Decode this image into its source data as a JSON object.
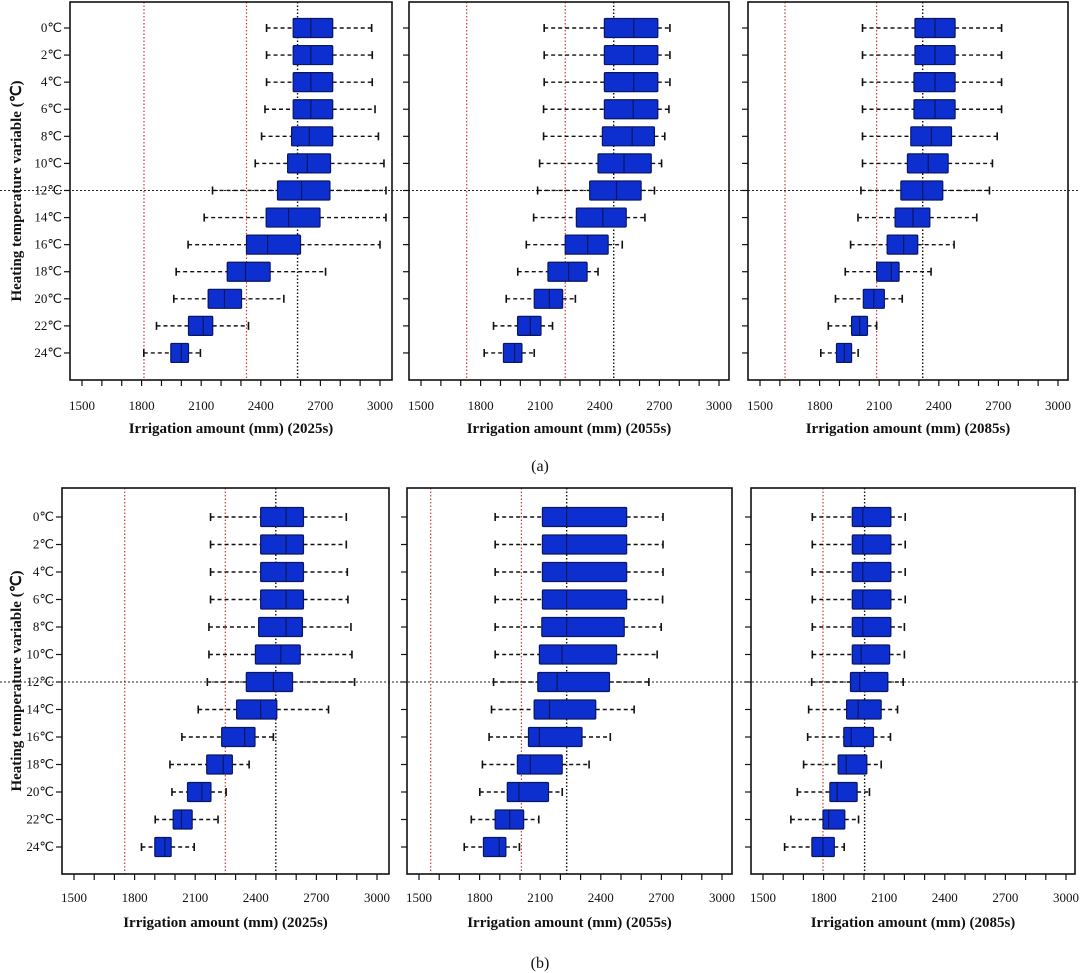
{
  "figure": {
    "row_labels": [
      "(a)",
      "(b)"
    ]
  },
  "colors": {
    "box_fill": "#0d2fcf",
    "box_stroke": "#0a1660",
    "ref_red": "#d03a3a",
    "ref_black": "#111111"
  },
  "chart_data": [
    {
      "type": "boxplot",
      "row": "(a)",
      "period": "2025s",
      "xlabel": "Irrigation amount (mm) (2025s)",
      "ylabel": "Heating temperature variable (℃)",
      "xlim": [
        1500,
        3000
      ],
      "x_ticks": [
        "1500",
        "1800",
        "2100",
        "2400",
        "2700",
        "3000"
      ],
      "categories": [
        "0℃",
        "2℃",
        "4℃",
        "6℃",
        "8℃",
        "10℃",
        "12℃",
        "14℃",
        "16℃",
        "18℃",
        "20℃",
        "22℃",
        "24℃"
      ],
      "stats_order": [
        "whisker_low",
        "q1",
        "median",
        "q3",
        "whisker_high"
      ],
      "boxes": [
        [
          2429,
          2563,
          2652,
          2762,
          2958
        ],
        [
          2429,
          2563,
          2652,
          2762,
          2961
        ],
        [
          2429,
          2563,
          2652,
          2762,
          2961
        ],
        [
          2421,
          2563,
          2652,
          2762,
          2975
        ],
        [
          2404,
          2555,
          2644,
          2762,
          2992
        ],
        [
          2372,
          2535,
          2634,
          2751,
          3020
        ],
        [
          2157,
          2484,
          2605,
          2748,
          3030
        ],
        [
          2115,
          2427,
          2540,
          2698,
          3030
        ],
        [
          2034,
          2328,
          2434,
          2600,
          3000
        ],
        [
          1974,
          2231,
          2323,
          2447,
          2726
        ],
        [
          1962,
          2135,
          2217,
          2303,
          2516
        ],
        [
          1875,
          2036,
          2110,
          2158,
          2338
        ],
        [
          1811,
          1947,
          2000,
          2036,
          2096
        ]
      ],
      "red_reference_lines": [
        1812,
        2328
      ],
      "black_reference_line": 2585,
      "highlight_category": "12℃"
    },
    {
      "type": "boxplot",
      "row": "(a)",
      "period": "2055s",
      "xlabel": "Irrigation amount (mm) (2055s)",
      "ylabel": "",
      "xlim": [
        1500,
        3000
      ],
      "x_ticks": [
        "1500",
        "1800",
        "2100",
        "2400",
        "2700",
        "3000"
      ],
      "categories": [
        "0℃",
        "2℃",
        "4℃",
        "6℃",
        "8℃",
        "10℃",
        "12℃",
        "14℃",
        "16℃",
        "18℃",
        "20℃",
        "22℃",
        "24℃"
      ],
      "stats_order": [
        "whisker_low",
        "q1",
        "median",
        "q3",
        "whisker_high"
      ],
      "boxes": [
        [
          2120,
          2423,
          2571,
          2692,
          2753
        ],
        [
          2120,
          2423,
          2571,
          2692,
          2753
        ],
        [
          2120,
          2423,
          2571,
          2692,
          2753
        ],
        [
          2117,
          2423,
          2568,
          2692,
          2748
        ],
        [
          2117,
          2413,
          2563,
          2675,
          2727
        ],
        [
          2097,
          2391,
          2522,
          2659,
          2711
        ],
        [
          2087,
          2349,
          2484,
          2608,
          2675
        ],
        [
          2067,
          2282,
          2415,
          2533,
          2627
        ],
        [
          2030,
          2226,
          2339,
          2442,
          2513
        ],
        [
          1987,
          2139,
          2243,
          2336,
          2391
        ],
        [
          1929,
          2070,
          2146,
          2213,
          2277
        ],
        [
          1865,
          1986,
          2050,
          2104,
          2162
        ],
        [
          1818,
          1915,
          1971,
          2008,
          2070
        ]
      ],
      "red_reference_lines": [
        1730,
        2226
      ],
      "black_reference_line": 2470,
      "highlight_category": "12℃"
    },
    {
      "type": "boxplot",
      "row": "(a)",
      "period": "2085s",
      "xlabel": "Irrigation amount (mm) (2085s)",
      "ylabel": "",
      "xlim": [
        1500,
        3000
      ],
      "x_ticks": [
        "1500",
        "1800",
        "2100",
        "2400",
        "2700",
        "3000"
      ],
      "categories": [
        "0℃",
        "2℃",
        "4℃",
        "6℃",
        "8℃",
        "10℃",
        "12℃",
        "14℃",
        "16℃",
        "18℃",
        "20℃",
        "22℃",
        "24℃"
      ],
      "stats_order": [
        "whisker_low",
        "q1",
        "median",
        "q3",
        "whisker_high"
      ],
      "boxes": [
        [
          2016,
          2280,
          2381,
          2482,
          2716
        ],
        [
          2016,
          2280,
          2381,
          2482,
          2716
        ],
        [
          2016,
          2275,
          2381,
          2482,
          2716
        ],
        [
          2016,
          2275,
          2381,
          2482,
          2716
        ],
        [
          2016,
          2259,
          2363,
          2464,
          2694
        ],
        [
          2016,
          2242,
          2347,
          2447,
          2670
        ],
        [
          2008,
          2209,
          2319,
          2420,
          2655
        ],
        [
          1993,
          2180,
          2270,
          2355,
          2591
        ],
        [
          1956,
          2140,
          2223,
          2294,
          2477
        ],
        [
          1929,
          2087,
          2161,
          2200,
          2361
        ],
        [
          1880,
          2020,
          2073,
          2126,
          2216
        ],
        [
          1844,
          1961,
          2002,
          2041,
          2087
        ],
        [
          1806,
          1885,
          1924,
          1961,
          1994
        ]
      ],
      "red_reference_lines": [
        1626,
        2087
      ],
      "black_reference_line": 2319,
      "highlight_category": "12℃"
    },
    {
      "type": "boxplot",
      "row": "(b)",
      "period": "2025s",
      "xlabel": "Irrigation amount (mm) (2025s)",
      "ylabel": "Heating temperature variable (℃)",
      "xlim": [
        1500,
        3000
      ],
      "x_ticks": [
        "1500",
        "1800",
        "2100",
        "2400",
        "2700",
        "3000"
      ],
      "categories": [
        "0℃",
        "2℃",
        "4℃",
        "6℃",
        "8℃",
        "10℃",
        "12℃",
        "14℃",
        "16℃",
        "18℃",
        "20℃",
        "22℃",
        "24℃"
      ],
      "stats_order": [
        "whisker_low",
        "q1",
        "median",
        "q3",
        "whisker_high"
      ],
      "boxes": [
        [
          2176,
          2424,
          2550,
          2636,
          2848
        ],
        [
          2176,
          2424,
          2550,
          2636,
          2848
        ],
        [
          2176,
          2424,
          2550,
          2636,
          2853
        ],
        [
          2176,
          2424,
          2550,
          2636,
          2856
        ],
        [
          2168,
          2414,
          2550,
          2631,
          2871
        ],
        [
          2168,
          2398,
          2524,
          2620,
          2876
        ],
        [
          2160,
          2353,
          2487,
          2582,
          2889
        ],
        [
          2115,
          2305,
          2424,
          2504,
          2760
        ],
        [
          2034,
          2231,
          2345,
          2396,
          2487
        ],
        [
          1975,
          2157,
          2239,
          2284,
          2367
        ],
        [
          1985,
          2062,
          2133,
          2178,
          2253
        ],
        [
          1902,
          1991,
          2032,
          2085,
          2213
        ],
        [
          1834,
          1900,
          1950,
          1981,
          2095
        ]
      ],
      "red_reference_lines": [
        1751,
        2249
      ],
      "black_reference_line": 2499,
      "highlight_category": "12℃"
    },
    {
      "type": "boxplot",
      "row": "(b)",
      "period": "2055s",
      "xlabel": "Irrigation amount (mm) (2055s)",
      "ylabel": "",
      "xlim": [
        1500,
        3000
      ],
      "x_ticks": [
        "1500",
        "1800",
        "2100",
        "2400",
        "2700",
        "3000"
      ],
      "categories": [
        "0℃",
        "2℃",
        "4℃",
        "6℃",
        "8℃",
        "10℃",
        "12℃",
        "14℃",
        "16℃",
        "18℃",
        "20℃",
        "22℃",
        "24℃"
      ],
      "stats_order": [
        "whisker_low",
        "q1",
        "median",
        "q3",
        "whisker_high"
      ],
      "boxes": [
        [
          1877,
          2111,
          2231,
          2528,
          2708
        ],
        [
          1877,
          2111,
          2231,
          2528,
          2708
        ],
        [
          1877,
          2111,
          2231,
          2528,
          2708
        ],
        [
          1877,
          2111,
          2231,
          2528,
          2706
        ],
        [
          1877,
          2108,
          2231,
          2516,
          2699
        ],
        [
          1877,
          2096,
          2208,
          2478,
          2679
        ],
        [
          1869,
          2088,
          2184,
          2443,
          2638
        ],
        [
          1859,
          2070,
          2146,
          2375,
          2565
        ],
        [
          1847,
          2042,
          2096,
          2307,
          2447
        ],
        [
          1814,
          1987,
          2051,
          2209,
          2342
        ],
        [
          1801,
          1937,
          1995,
          2141,
          2209
        ],
        [
          1759,
          1877,
          1949,
          2018,
          2093
        ],
        [
          1724,
          1819,
          1897,
          1930,
          1997
        ]
      ],
      "red_reference_lines": [
        1558,
        2007
      ],
      "black_reference_line": 2231,
      "highlight_category": "12℃"
    },
    {
      "type": "boxplot",
      "row": "(b)",
      "period": "2085s",
      "xlabel": "Irrigation amount (mm) (2085s)",
      "ylabel": "",
      "xlim": [
        1500,
        3000
      ],
      "x_ticks": [
        "1500",
        "1800",
        "2100",
        "2400",
        "2700",
        "3000"
      ],
      "categories": [
        "0℃",
        "2℃",
        "4℃",
        "6℃",
        "8℃",
        "10℃",
        "12℃",
        "14℃",
        "16℃",
        "18℃",
        "20℃",
        "22℃",
        "24℃"
      ],
      "stats_order": [
        "whisker_low",
        "q1",
        "median",
        "q3",
        "whisker_high"
      ],
      "boxes": [
        [
          1744,
          1942,
          1994,
          2133,
          2204
        ],
        [
          1744,
          1942,
          1994,
          2133,
          2204
        ],
        [
          1744,
          1942,
          1994,
          2133,
          2204
        ],
        [
          1744,
          1942,
          1994,
          2133,
          2204
        ],
        [
          1744,
          1942,
          1994,
          2133,
          2200
        ],
        [
          1744,
          1942,
          1986,
          2127,
          2200
        ],
        [
          1741,
          1933,
          1979,
          2118,
          2194
        ],
        [
          1726,
          1914,
          1971,
          2085,
          2166
        ],
        [
          1721,
          1900,
          1937,
          2047,
          2131
        ],
        [
          1701,
          1872,
          1912,
          2014,
          2085
        ],
        [
          1670,
          1831,
          1867,
          1966,
          2027
        ],
        [
          1638,
          1797,
          1825,
          1905,
          1973
        ],
        [
          1607,
          1742,
          1797,
          1853,
          1902
        ]
      ],
      "red_reference_lines": [
        1797
      ],
      "black_reference_line": 2003,
      "highlight_category": "12℃"
    }
  ]
}
